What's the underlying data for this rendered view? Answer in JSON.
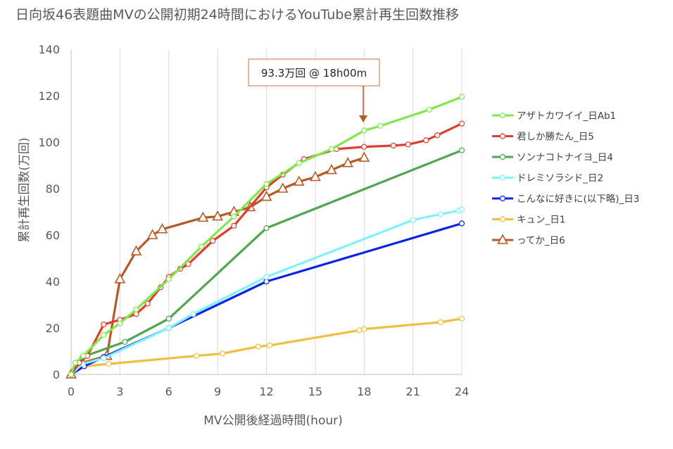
{
  "chart_data": {
    "type": "line",
    "title": "日向坂46表題曲MVの公開初期24時間におけるYouTube累計再生回数推移",
    "xlabel": "MV公開後経過時間(hour)",
    "ylabel": "累計再生回数(万回)",
    "xlim": [
      0,
      24
    ],
    "ylim": [
      0,
      140
    ],
    "x_ticks": [
      "0",
      "3",
      "6",
      "9",
      "12",
      "15",
      "18",
      "21",
      "24"
    ],
    "y_ticks": [
      "0",
      "20",
      "40",
      "60",
      "80",
      "100",
      "120",
      "140"
    ],
    "grid": "vertical",
    "legend_position": "right",
    "annotation": {
      "text": "93.3万回 @ 18h00m",
      "x": 18,
      "y": 93.3
    },
    "series": [
      {
        "name": "アザトカワイイ_日Ab1",
        "color": "#7FE84B",
        "marker": "circle",
        "points": [
          [
            0,
            0
          ],
          [
            0.25,
            5
          ],
          [
            0.75,
            8
          ],
          [
            2,
            17
          ],
          [
            3,
            22
          ],
          [
            4,
            28
          ],
          [
            6,
            41
          ],
          [
            8,
            55
          ],
          [
            10,
            68
          ],
          [
            12,
            82
          ],
          [
            14,
            91
          ],
          [
            16,
            97
          ],
          [
            18,
            105
          ],
          [
            19,
            107
          ],
          [
            22,
            114
          ],
          [
            24,
            119.5
          ]
        ]
      },
      {
        "name": "君しか勝たん_日5",
        "color": "#E03C31",
        "marker": "circle",
        "points": [
          [
            0,
            0
          ],
          [
            0.5,
            5
          ],
          [
            1,
            8
          ],
          [
            2,
            21.5
          ],
          [
            3,
            23.5
          ],
          [
            4,
            26
          ],
          [
            4.7,
            30.5
          ],
          [
            5.5,
            37.5
          ],
          [
            6,
            42
          ],
          [
            6.7,
            45.5
          ],
          [
            7.2,
            47.5
          ],
          [
            8.7,
            57.5
          ],
          [
            10,
            64
          ],
          [
            12,
            80.5
          ],
          [
            13,
            86
          ],
          [
            14.3,
            92.7
          ],
          [
            16.3,
            97
          ],
          [
            18,
            98
          ],
          [
            19.8,
            98.5
          ],
          [
            20.7,
            99
          ],
          [
            21.8,
            100.8
          ],
          [
            22.5,
            103
          ],
          [
            24,
            108
          ]
        ]
      },
      {
        "name": "ソンナコトナイヨ_日4",
        "color": "#4FA64F",
        "marker": "circle",
        "points": [
          [
            0,
            0
          ],
          [
            0.7,
            7.5
          ],
          [
            3.3,
            14
          ],
          [
            6,
            24
          ],
          [
            12,
            63
          ],
          [
            24,
            96.5
          ]
        ]
      },
      {
        "name": "ドレミソラシド_日2",
        "color": "#7FF2FA",
        "marker": "circle",
        "points": [
          [
            0,
            0
          ],
          [
            0.7,
            4.5
          ],
          [
            2,
            7
          ],
          [
            6,
            20
          ],
          [
            7.5,
            26
          ],
          [
            12,
            42
          ],
          [
            21,
            66.5
          ],
          [
            22.7,
            69
          ],
          [
            23.8,
            70.5
          ],
          [
            24,
            71
          ]
        ]
      },
      {
        "name": "こんなに好きに(以下略)_日3",
        "color": "#0B23E8",
        "marker": "circle",
        "points": [
          [
            0,
            0
          ],
          [
            0.8,
            3.5
          ],
          [
            2,
            7.5
          ],
          [
            6,
            20
          ],
          [
            12,
            40
          ],
          [
            24,
            65
          ]
        ]
      },
      {
        "name": "キュン_日1",
        "color": "#F0BE41",
        "marker": "circle",
        "points": [
          [
            0,
            0
          ],
          [
            0.8,
            3.5
          ],
          [
            2.3,
            4.5
          ],
          [
            7.7,
            8
          ],
          [
            9.3,
            9
          ],
          [
            11.5,
            12
          ],
          [
            12.2,
            12.5
          ],
          [
            17.7,
            19
          ],
          [
            18,
            19.5
          ],
          [
            22.7,
            22.5
          ],
          [
            24,
            24
          ]
        ]
      },
      {
        "name": "ってか_日6",
        "color": "#B65A25",
        "marker": "triangle",
        "points": [
          [
            0,
            0
          ],
          [
            0.7,
            5
          ],
          [
            2.2,
            8
          ],
          [
            3,
            41
          ],
          [
            4,
            53
          ],
          [
            5,
            60
          ],
          [
            5.6,
            62.5
          ],
          [
            8.1,
            67.5
          ],
          [
            9,
            68
          ],
          [
            10,
            70
          ],
          [
            11,
            72
          ],
          [
            12,
            76.5
          ],
          [
            13,
            80
          ],
          [
            14,
            83
          ],
          [
            15,
            85
          ],
          [
            16,
            88
          ],
          [
            17,
            91
          ],
          [
            18,
            93.3
          ]
        ]
      }
    ]
  }
}
